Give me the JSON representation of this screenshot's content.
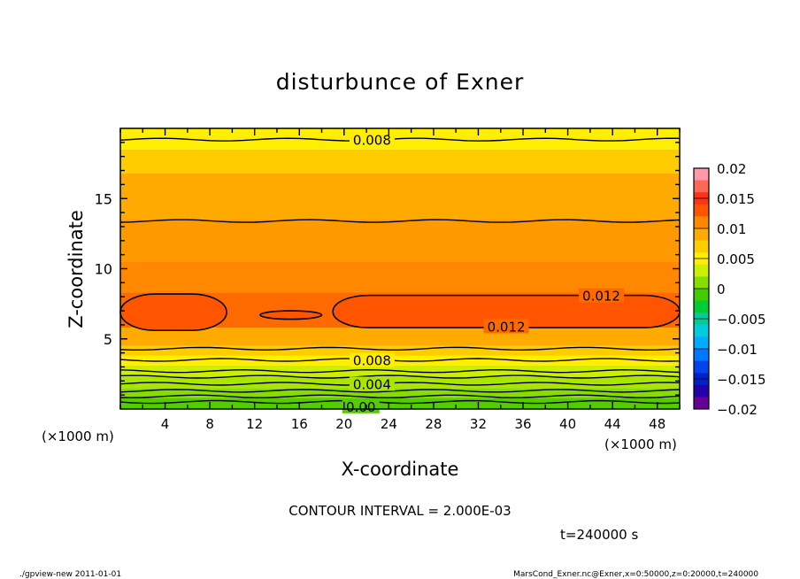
{
  "chart_data": {
    "type": "heatmap",
    "title": "disturbunce of Exner",
    "xlabel": "X-coordinate",
    "ylabel": "Z-coordinate",
    "x_unit_left": "(×1000 m)",
    "x_unit_right": "(×1000 m)",
    "xlim": [
      0,
      50
    ],
    "ylim": [
      0,
      20
    ],
    "x_ticks": [
      "4",
      "8",
      "12",
      "16",
      "20",
      "24",
      "28",
      "32",
      "36",
      "40",
      "44",
      "48"
    ],
    "y_ticks": [
      "5",
      "10",
      "15"
    ],
    "contour_interval_text": "CONTOUR INTERVAL = 2.000E-03",
    "time_text": "t=240000 s",
    "footer_left": "./gpview-new   2011-01-01",
    "footer_right": "MarsCond_Exner.nc@Exner,x=0:50000,z=0:20000,t=240000",
    "colorbar": {
      "levels": [
        "0.02",
        "0.015",
        "0.01",
        "0.005",
        "0",
        "−0.005",
        "−0.01",
        "−0.015",
        "−0.02"
      ],
      "colors": [
        "#ff99aa",
        "#ff6655",
        "#ff3311",
        "#ff5500",
        "#ff8800",
        "#ffaa00",
        "#ffcc00",
        "#ffee00",
        "#ccee00",
        "#88dd00",
        "#44cc00",
        "#00cc33",
        "#00cc99",
        "#00ccdd",
        "#00aaff",
        "#0077ff",
        "#0044ee",
        "#0022cc",
        "#2200aa",
        "#660099"
      ]
    },
    "bands": [
      {
        "z_bottom": 0.0,
        "z_top": 0.8,
        "color": "#55cc00"
      },
      {
        "z_bottom": 0.8,
        "z_top": 1.5,
        "color": "#88dd00"
      },
      {
        "z_bottom": 1.5,
        "z_top": 2.3,
        "color": "#aae600"
      },
      {
        "z_bottom": 2.3,
        "z_top": 3.1,
        "color": "#ccee00"
      },
      {
        "z_bottom": 3.1,
        "z_top": 3.8,
        "color": "#ffee00"
      },
      {
        "z_bottom": 3.8,
        "z_top": 4.5,
        "color": "#ffcc00"
      },
      {
        "z_bottom": 4.5,
        "z_top": 5.8,
        "color": "#ffaa00"
      },
      {
        "z_bottom": 5.8,
        "z_top": 8.3,
        "color": "#ff6a00"
      },
      {
        "z_bottom": 8.3,
        "z_top": 10.5,
        "color": "#ff8800"
      },
      {
        "z_bottom": 10.5,
        "z_top": 13.5,
        "color": "#ff9900"
      },
      {
        "z_bottom": 13.5,
        "z_top": 16.8,
        "color": "#ffaa00"
      },
      {
        "z_bottom": 16.8,
        "z_top": 18.5,
        "color": "#ffcc00"
      },
      {
        "z_bottom": 18.5,
        "z_top": 19.5,
        "color": "#ffee00"
      }
    ],
    "contour_lines_z": [
      0.5,
      0.9,
      1.3,
      1.8,
      2.3,
      2.7,
      3.5,
      4.3,
      13.4,
      19.2
    ],
    "contour_labels": [
      {
        "text": "0.008",
        "x": 22.5,
        "z": 19.2
      },
      {
        "text": "0.012",
        "x": 43.0,
        "z": 8.1
      },
      {
        "text": "0.012",
        "x": 34.5,
        "z": 5.9
      },
      {
        "text": "0.008",
        "x": 22.5,
        "z": 3.5
      },
      {
        "text": "0.004",
        "x": 22.5,
        "z": 1.8
      },
      {
        "text": "0.00",
        "x": 21.5,
        "z": 0.2
      }
    ],
    "closed_regions_0_012": [
      {
        "x_start": 0.0,
        "x_end": 9.5,
        "z_bottom": 5.6,
        "z_top": 8.2
      },
      {
        "x_start": 12.5,
        "x_end": 18.0,
        "z_bottom": 6.4,
        "z_top": 7.0
      },
      {
        "x_start": 19.0,
        "x_end": 50.0,
        "z_bottom": 5.8,
        "z_top": 8.1
      }
    ]
  }
}
